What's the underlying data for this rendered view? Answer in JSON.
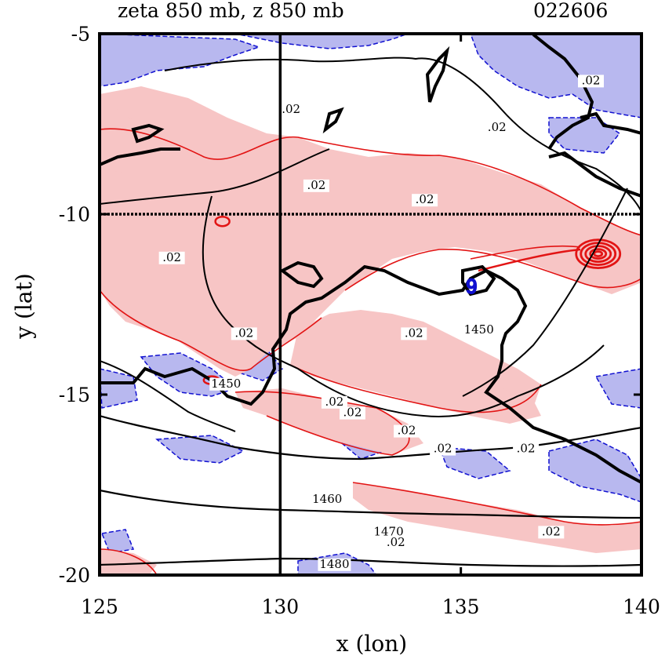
{
  "chart_data": {
    "type": "contour",
    "title_left": "zeta 850 mb, z 850 mb",
    "title_right": "022606",
    "xlabel": "x (lon)",
    "ylabel": "y (lat)",
    "xlim": [
      125,
      140
    ],
    "ylim": [
      -20,
      -5
    ],
    "xticks": [
      "125",
      "130",
      "135",
      "140"
    ],
    "yticks": [
      "-5",
      "-10",
      "-15",
      "-20"
    ],
    "reference_lines": {
      "lon": 130,
      "lat": -10
    },
    "height_contour_labels": [
      {
        "text": "1450",
        "lon": 135.5,
        "lat": -13.3
      },
      {
        "text": "1450",
        "lon": 128.5,
        "lat": -14.8
      },
      {
        "text": "1460",
        "lon": 131.3,
        "lat": -18.0
      },
      {
        "text": "1470",
        "lon": 133.0,
        "lat": -18.9
      },
      {
        "text": "1480",
        "lon": 131.5,
        "lat": -19.8
      }
    ],
    "vorticity_labels": [
      {
        "text": ".02",
        "lon": 127.0,
        "lat": -11.3
      },
      {
        "text": ".02",
        "lon": 129.0,
        "lat": -13.4
      },
      {
        "text": ".02",
        "lon": 130.3,
        "lat": -7.2
      },
      {
        "text": ".02",
        "lon": 131.0,
        "lat": -9.3
      },
      {
        "text": ".02",
        "lon": 134.0,
        "lat": -9.7
      },
      {
        "text": ".02",
        "lon": 136.0,
        "lat": -7.7
      },
      {
        "text": ".02",
        "lon": 133.7,
        "lat": -13.4
      },
      {
        "text": ".02",
        "lon": 131.5,
        "lat": -15.3
      },
      {
        "text": ".02",
        "lon": 132.0,
        "lat": -15.6
      },
      {
        "text": ".02",
        "lon": 133.5,
        "lat": -16.1
      },
      {
        "text": ".02",
        "lon": 134.5,
        "lat": -16.6
      },
      {
        "text": ".02",
        "lon": 136.8,
        "lat": -16.6
      },
      {
        "text": ".02",
        "lon": 137.5,
        "lat": -18.9
      },
      {
        "text": ".02",
        "lon": 133.2,
        "lat": -19.2
      },
      {
        "text": ".02",
        "lon": 138.6,
        "lat": -6.4
      }
    ],
    "storm_symbol": {
      "lon": 135.3,
      "lat": -12.0,
      "glyph": "𝟗"
    },
    "colors": {
      "positive_fill": "#f7c5c5",
      "positive_line": "#e21414",
      "negative_fill": "#b8b8ef",
      "negative_line": "#1010d0",
      "height_line": "#000000",
      "storm": "#1010d0"
    }
  }
}
